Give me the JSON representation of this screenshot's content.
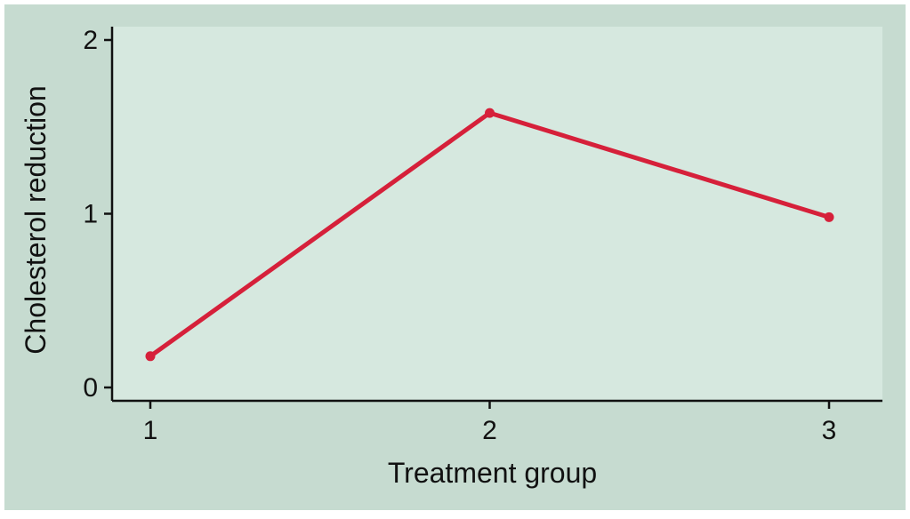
{
  "chart_data": {
    "type": "line",
    "title": "",
    "xlabel": "Treatment group",
    "ylabel": "Cholesterol reduction",
    "x": [
      1,
      2,
      3
    ],
    "x_ticks": [
      "1",
      "2",
      "3"
    ],
    "y_ticks": [
      "0",
      "1",
      "2"
    ],
    "ylim": [
      0,
      2
    ],
    "xlim": [
      1,
      3
    ],
    "grid": false,
    "series": [
      {
        "values": [
          0.18,
          1.58,
          0.98
        ]
      }
    ]
  },
  "colors": {
    "figure_background": "#c6dbd0",
    "plot_background": "#d6e8df",
    "line": "#d6203a",
    "axis": "#111111"
  }
}
